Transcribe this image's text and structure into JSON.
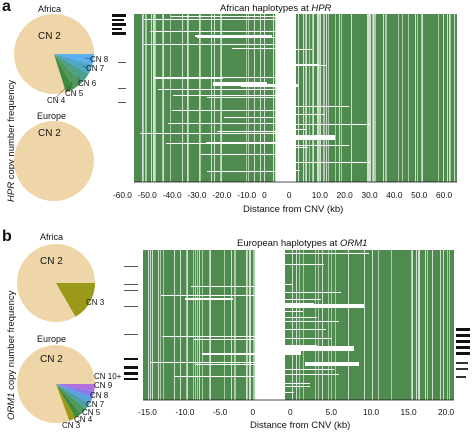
{
  "panel_a": {
    "letter": "a",
    "ylabel_gene": "HPR",
    "ylabel_rest": " copy number frequency",
    "africa": {
      "label": "Africa",
      "main_slice": "CN 2",
      "slices": [
        "CN 8",
        "CN 7",
        "CN 6",
        "CN 5",
        "CN 4"
      ]
    },
    "europe": {
      "label": "Europe",
      "main_slice": "CN 2"
    },
    "heatmap_title_prefix": "African haplotypes at ",
    "heatmap_title_gene": "HPR",
    "x_ticks": [
      "-60.0",
      "-50.0",
      "-40.0",
      "-30.0",
      "-20.0",
      "-10.0",
      "0",
      "0",
      "10.0",
      "20.0",
      "30.0",
      "40.0",
      "50.0",
      "60.0"
    ],
    "xlabel": "Distance from CNV (kb)"
  },
  "panel_b": {
    "letter": "b",
    "ylabel_gene": "ORM1",
    "ylabel_rest": " copy number frequency",
    "africa": {
      "label": "Africa",
      "main_slice": "CN 2",
      "slices": [
        "CN 3"
      ]
    },
    "europe": {
      "label": "Europe",
      "main_slice": "CN 2",
      "slices": [
        "CN 10+",
        "CN 9",
        "CN 8",
        "CN 7",
        "CN 5",
        "CN 4",
        "CN 3"
      ]
    },
    "heatmap_title_prefix": "European haplotypes at ",
    "heatmap_title_gene": "ORM1",
    "x_ticks": [
      "-15.0",
      "-10.0",
      "-5.0",
      "0",
      "0",
      "5.0",
      "10.0",
      "15.0",
      "20.0"
    ],
    "xlabel": "Distance from CNV (kb)"
  },
  "colors": {
    "pie_main": "#efd6a8",
    "haplotype_green": "#4f8a4f",
    "cn3_olive": "#9a9a18",
    "cn_blue": "#5aa0e0",
    "cn_purple": "#b070e0"
  }
}
